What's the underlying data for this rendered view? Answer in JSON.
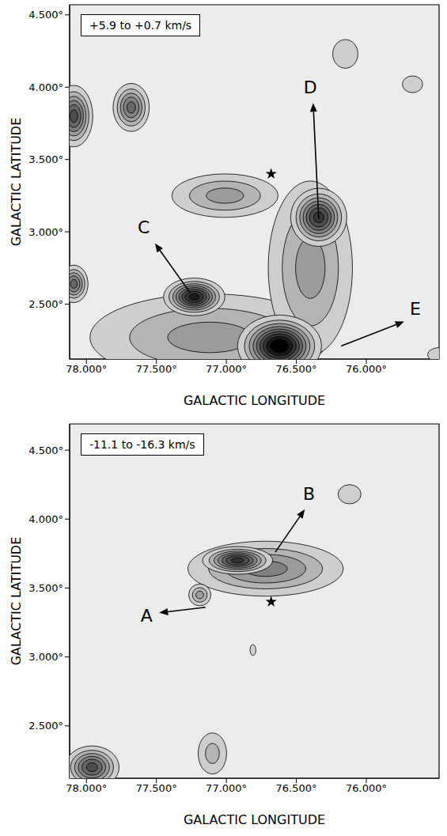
{
  "chart_data": [
    {
      "type": "contour",
      "title": "+5.9 to +0.7 km/s",
      "xlabel": "GALACTIC LONGITUDE",
      "ylabel": "GALACTIC LATITUDE",
      "xlim": [
        78.12,
        75.48
      ],
      "ylim": [
        2.12,
        4.57
      ],
      "xticks": [
        {
          "value": 78,
          "label": "78.000°"
        },
        {
          "value": 77.5,
          "label": "77.500°"
        },
        {
          "value": 77,
          "label": "77.000°"
        },
        {
          "value": 76.5,
          "label": "76.500°"
        },
        {
          "value": 76,
          "label": "76.000°"
        }
      ],
      "yticks": [
        {
          "value": 4.5,
          "label": "4.500°"
        },
        {
          "value": 4,
          "label": "4.000°"
        },
        {
          "value": 3.5,
          "label": "3.500°"
        },
        {
          "value": 3,
          "label": "3.000°"
        },
        {
          "value": 2.5,
          "label": "2.500°"
        }
      ],
      "grid": false,
      "contour_levels": [
        1,
        2,
        3,
        4,
        5,
        6,
        7,
        8,
        9
      ],
      "clumps": [
        {
          "l": 78.09,
          "b": 3.8,
          "sigma_l": 0.07,
          "sigma_b": 0.11,
          "peak": 6.5
        },
        {
          "l": 77.68,
          "b": 3.86,
          "sigma_l": 0.07,
          "sigma_b": 0.09,
          "peak": 5.5
        },
        {
          "l": 76.15,
          "b": 4.23,
          "sigma_l": 0.1,
          "sigma_b": 0.11,
          "peak": 1.5
        },
        {
          "l": 75.67,
          "b": 4.02,
          "sigma_l": 0.1,
          "sigma_b": 0.08,
          "peak": 1.3
        },
        {
          "l": 77.12,
          "b": 2.27,
          "sigma_l": 0.54,
          "sigma_b": 0.19,
          "peak": 3.5
        },
        {
          "l": 76.4,
          "b": 2.75,
          "sigma_l": 0.19,
          "sigma_b": 0.38,
          "peak": 3.5
        },
        {
          "l": 77.01,
          "b": 3.25,
          "sigma_l": 0.24,
          "sigma_b": 0.095,
          "peak": 3.5
        },
        {
          "l": 76.34,
          "b": 3.1,
          "sigma_l": 0.1,
          "sigma_b": 0.1,
          "peak": 7.5
        },
        {
          "l": 77.23,
          "b": 2.55,
          "sigma_l": 0.106,
          "sigma_b": 0.063,
          "peak": 8.5
        },
        {
          "l": 78.09,
          "b": 2.64,
          "sigma_l": 0.055,
          "sigma_b": 0.07,
          "peak": 5.5
        },
        {
          "l": 76.62,
          "b": 2.21,
          "sigma_l": 0.14,
          "sigma_b": 0.1,
          "peak": 10
        },
        {
          "l": 75.48,
          "b": 2.15,
          "sigma_l": 0.1,
          "sigma_b": 0.06,
          "peak": 1.4
        }
      ],
      "star": [
        76.68,
        3.4
      ],
      "annotations": [
        {
          "text": "C",
          "x": 77.59,
          "y": 3.03,
          "arrow_from": [
            77.26,
            2.58
          ],
          "arrow_to": [
            77.51,
            2.92
          ]
        },
        {
          "text": "D",
          "x": 76.4,
          "y": 4.0,
          "arrow_from": [
            76.34,
            3.09
          ],
          "arrow_to": [
            76.38,
            3.89
          ]
        },
        {
          "text": "E",
          "x": 75.65,
          "y": 2.47,
          "arrow_from": [
            76.18,
            2.21
          ],
          "arrow_to": [
            75.73,
            2.38
          ]
        }
      ]
    },
    {
      "type": "contour",
      "title": "-11.1 to -16.3 km/s",
      "xlabel": "GALACTIC LONGITUDE",
      "ylabel": "GALACTIC LATITUDE",
      "xlim": [
        78.12,
        75.48
      ],
      "ylim": [
        2.12,
        4.69
      ],
      "xticks": [
        {
          "value": 78,
          "label": "78.000°"
        },
        {
          "value": 77.5,
          "label": "77.500°"
        },
        {
          "value": 77,
          "label": "77.000°"
        },
        {
          "value": 76.5,
          "label": "76.500°"
        },
        {
          "value": 76,
          "label": "76.000°"
        }
      ],
      "yticks": [
        {
          "value": 4.5,
          "label": "4.500°"
        },
        {
          "value": 4,
          "label": "4.000°"
        },
        {
          "value": 3.5,
          "label": "3.500°"
        },
        {
          "value": 3,
          "label": "3.000°"
        },
        {
          "value": 2.5,
          "label": "2.500°"
        }
      ],
      "grid": false,
      "contour_levels": [
        1,
        2,
        3,
        4,
        5,
        6,
        7,
        8,
        9
      ],
      "clumps": [
        {
          "l": 76.72,
          "b": 3.64,
          "sigma_l": 0.32,
          "sigma_b": 0.115,
          "peak": 4.5
        },
        {
          "l": 76.92,
          "b": 3.7,
          "sigma_l": 0.125,
          "sigma_b": 0.05,
          "peak": 7.5
        },
        {
          "l": 77.19,
          "b": 3.45,
          "sigma_l": 0.05,
          "sigma_b": 0.05,
          "peak": 3.5
        },
        {
          "l": 76.12,
          "b": 4.18,
          "sigma_l": 0.1,
          "sigma_b": 0.085,
          "peak": 1.4
        },
        {
          "l": 76.81,
          "b": 3.05,
          "sigma_l": 0.035,
          "sigma_b": 0.065,
          "peak": 1.2
        },
        {
          "l": 77.96,
          "b": 2.2,
          "sigma_l": 0.1,
          "sigma_b": 0.08,
          "peak": 6.5
        },
        {
          "l": 77.1,
          "b": 2.3,
          "sigma_l": 0.075,
          "sigma_b": 0.11,
          "peak": 2.5
        }
      ],
      "star": [
        76.68,
        3.4
      ],
      "annotations": [
        {
          "text": "B",
          "x": 76.41,
          "y": 4.18,
          "arrow_from": [
            76.65,
            3.76
          ],
          "arrow_to": [
            76.44,
            4.07
          ]
        },
        {
          "text": "A",
          "x": 77.57,
          "y": 3.3,
          "arrow_from": [
            77.15,
            3.36
          ],
          "arrow_to": [
            77.48,
            3.32
          ]
        }
      ]
    }
  ]
}
